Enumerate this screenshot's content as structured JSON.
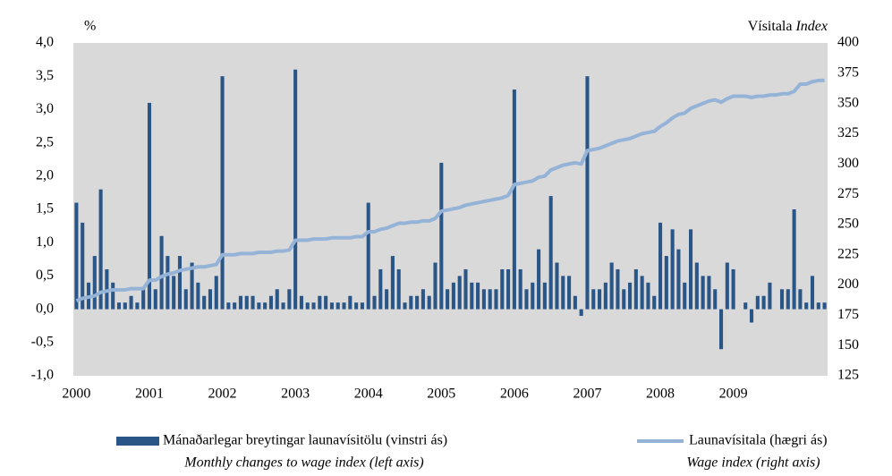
{
  "chart_data": {
    "type": "bar-line",
    "left_axis_label": "%",
    "right_axis_label": "Vísitala",
    "right_axis_label_en": "Index",
    "categories": [
      "2000",
      null,
      null,
      null,
      null,
      null,
      null,
      null,
      null,
      null,
      null,
      null,
      "2001",
      null,
      null,
      null,
      null,
      null,
      null,
      null,
      null,
      null,
      null,
      null,
      "2002",
      null,
      null,
      null,
      null,
      null,
      null,
      null,
      null,
      null,
      null,
      null,
      "2003",
      null,
      null,
      null,
      null,
      null,
      null,
      null,
      null,
      null,
      null,
      null,
      "2004",
      null,
      null,
      null,
      null,
      null,
      null,
      null,
      null,
      null,
      null,
      null,
      "2005",
      null,
      null,
      null,
      null,
      null,
      null,
      null,
      null,
      null,
      null,
      null,
      "2006",
      null,
      null,
      null,
      null,
      null,
      null,
      null,
      null,
      null,
      null,
      null,
      "2007",
      null,
      null,
      null,
      null,
      null,
      null,
      null,
      null,
      null,
      null,
      null,
      "2008",
      null,
      null,
      null,
      null,
      null,
      null,
      null,
      null,
      null,
      null,
      null,
      "2009",
      null,
      null,
      null,
      null,
      null,
      null,
      null,
      null,
      null,
      null,
      null,
      null,
      null,
      null,
      null
    ],
    "series": [
      {
        "name": "Mánaðarlegar breytingar launavísitölu (vinstri ás)",
        "name_en": "Monthly changes to wage index (left axis)",
        "kind": "bar",
        "color": "#2a5687",
        "values": [
          1.6,
          1.3,
          0.4,
          0.8,
          1.8,
          0.6,
          0.4,
          0.1,
          0.1,
          0.2,
          0.1,
          0.3,
          3.1,
          0.3,
          1.1,
          0.8,
          0.5,
          0.8,
          0.3,
          0.7,
          0.4,
          0.2,
          0.3,
          0.5,
          3.5,
          0.1,
          0.1,
          0.2,
          0.2,
          0.2,
          0.1,
          0.1,
          0.2,
          0.3,
          0.1,
          0.3,
          3.6,
          0.2,
          0.1,
          0.1,
          0.2,
          0.2,
          0.1,
          0.1,
          0.1,
          0.2,
          0.1,
          0.1,
          1.6,
          0.2,
          0.6,
          0.3,
          0.8,
          0.6,
          0.1,
          0.2,
          0.2,
          0.3,
          0.2,
          0.7,
          2.2,
          0.3,
          0.4,
          0.5,
          0.6,
          0.4,
          0.4,
          0.3,
          0.3,
          0.3,
          0.6,
          0.6,
          3.3,
          0.6,
          0.3,
          0.4,
          0.9,
          0.4,
          1.7,
          0.7,
          0.5,
          0.5,
          0.2,
          -0.1,
          3.5,
          0.3,
          0.3,
          0.4,
          0.7,
          0.6,
          0.3,
          0.4,
          0.6,
          0.5,
          0.4,
          0.2,
          1.3,
          0.8,
          1.2,
          0.9,
          0.4,
          1.2,
          0.7,
          0.5,
          0.5,
          0.3,
          -0.6,
          0.7,
          0.6,
          0.0,
          0.1,
          -0.2,
          0.2,
          0.2,
          0.4,
          0.0,
          0.3,
          0.3,
          1.5,
          0.3,
          0.1,
          0.5,
          0.1,
          0.1
        ]
      },
      {
        "name": "Launavísitala (hægri ás)",
        "name_en": "Wage index (right axis)",
        "kind": "line",
        "axis": "y2",
        "color": "#95b3d7",
        "values": [
          187,
          189,
          190,
          191,
          194,
          195,
          196,
          196,
          196,
          197,
          197,
          197,
          204,
          204,
          207,
          209,
          210,
          212,
          213,
          214,
          215,
          215,
          216,
          217,
          225,
          225,
          225,
          226,
          226,
          226,
          227,
          227,
          227,
          228,
          228,
          229,
          237,
          237,
          237,
          238,
          238,
          238,
          239,
          239,
          239,
          239,
          240,
          240,
          244,
          244,
          246,
          247,
          249,
          251,
          251,
          252,
          252,
          253,
          253,
          255,
          261,
          262,
          263,
          264,
          266,
          267,
          268,
          269,
          270,
          271,
          272,
          274,
          283,
          284,
          285,
          286,
          289,
          290,
          295,
          297,
          299,
          300,
          301,
          300,
          311,
          312,
          313,
          315,
          317,
          319,
          320,
          321,
          323,
          325,
          326,
          327,
          331,
          334,
          338,
          341,
          342,
          346,
          348,
          350,
          352,
          353,
          351,
          354,
          356,
          356,
          356,
          355,
          356,
          356,
          357,
          357,
          358,
          358,
          360,
          366,
          366,
          368,
          369,
          369
        ]
      }
    ],
    "ylim": [
      -1,
      4
    ],
    "yticks": [
      {
        "value": -1,
        "label": "-1,0"
      },
      {
        "value": -0.5,
        "label": "-0,5"
      },
      {
        "value": 0,
        "label": "0,0"
      },
      {
        "value": 0.5,
        "label": "0,5"
      },
      {
        "value": 1,
        "label": "1,0"
      },
      {
        "value": 1.5,
        "label": "1,5"
      },
      {
        "value": 2,
        "label": "2,0"
      },
      {
        "value": 2.5,
        "label": "2,5"
      },
      {
        "value": 3,
        "label": "3,0"
      },
      {
        "value": 3.5,
        "label": "3,5"
      },
      {
        "value": 4,
        "label": "4,0"
      }
    ],
    "y2lim": [
      125,
      400
    ],
    "y2ticks": [
      125,
      150,
      175,
      200,
      225,
      250,
      275,
      300,
      325,
      350,
      375,
      400
    ],
    "grid": false
  }
}
